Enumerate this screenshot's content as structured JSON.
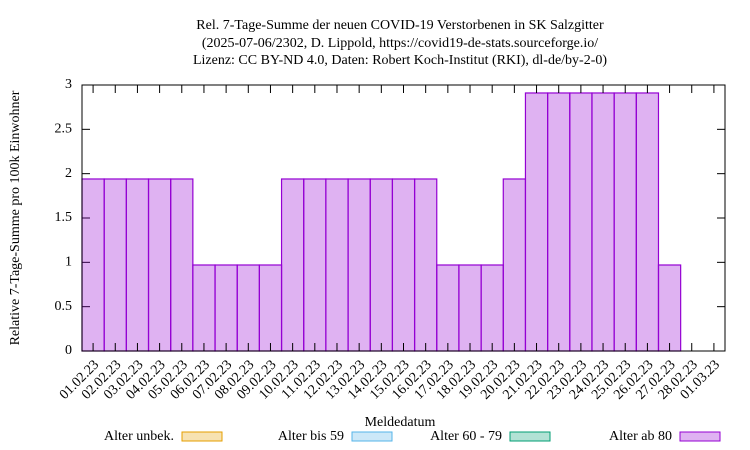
{
  "chart_data": {
    "type": "bar",
    "stacked": true,
    "title": [
      "Rel. 7-Tage-Summe der neuen COVID-19 Verstorbenen in SK Salzgitter",
      "(2025-07-06/2302, D. Lippold, https://covid19-de-stats.sourceforge.io/",
      "Lizenz: CC BY-ND 4.0, Daten: Robert Koch-Institut (RKI), dl-de/by-2-0)"
    ],
    "x_label": "Meldedatum",
    "y_label": "Relative 7-Tage-Summe pro 100k Einwohner",
    "categories": [
      "01.02.23",
      "02.02.23",
      "03.02.23",
      "04.02.23",
      "05.02.23",
      "06.02.23",
      "07.02.23",
      "08.02.23",
      "09.02.23",
      "10.02.23",
      "11.02.23",
      "12.02.23",
      "13.02.23",
      "14.02.23",
      "15.02.23",
      "16.02.23",
      "17.02.23",
      "18.02.23",
      "19.02.23",
      "20.02.23",
      "21.02.23",
      "22.02.23",
      "23.02.23",
      "24.02.23",
      "25.02.23",
      "26.02.23",
      "27.02.23",
      "28.02.23",
      "01.03.23"
    ],
    "series": [
      {
        "name": "Alter unbek.",
        "color": "#e69f00",
        "values": [
          0,
          0,
          0,
          0,
          0,
          0,
          0,
          0,
          0,
          0,
          0,
          0,
          0,
          0,
          0,
          0,
          0,
          0,
          0,
          0,
          0,
          0,
          0,
          0,
          0,
          0,
          0,
          null,
          null
        ]
      },
      {
        "name": "Alter bis 59",
        "color": "#56b4e9",
        "values": [
          0,
          0,
          0,
          0,
          0,
          0,
          0,
          0,
          0,
          0,
          0,
          0,
          0,
          0,
          0,
          0,
          0,
          0,
          0,
          0,
          0,
          0,
          0,
          0,
          0,
          0,
          0,
          null,
          null
        ]
      },
      {
        "name": "Alter 60 - 79",
        "color": "#009e73",
        "values": [
          0,
          0,
          0,
          0,
          0,
          0,
          0,
          0,
          0,
          0,
          0,
          0,
          0,
          0,
          0,
          0,
          0,
          0,
          0,
          0,
          0,
          0,
          0,
          0,
          0,
          0,
          0,
          null,
          null
        ]
      },
      {
        "name": "Alter ab 80",
        "color": "#9400d3",
        "values": [
          1.94,
          1.94,
          1.94,
          1.94,
          1.94,
          0.97,
          0.97,
          0.97,
          0.97,
          1.94,
          1.94,
          1.94,
          1.94,
          1.94,
          1.94,
          1.94,
          0.97,
          0.97,
          0.97,
          1.94,
          2.91,
          2.91,
          2.91,
          2.91,
          2.91,
          2.91,
          0.97,
          null,
          null
        ]
      }
    ],
    "ylim": [
      0,
      3
    ],
    "yticks": [
      0,
      0.5,
      1,
      1.5,
      2,
      2.5,
      3
    ],
    "legend": "bottom"
  }
}
